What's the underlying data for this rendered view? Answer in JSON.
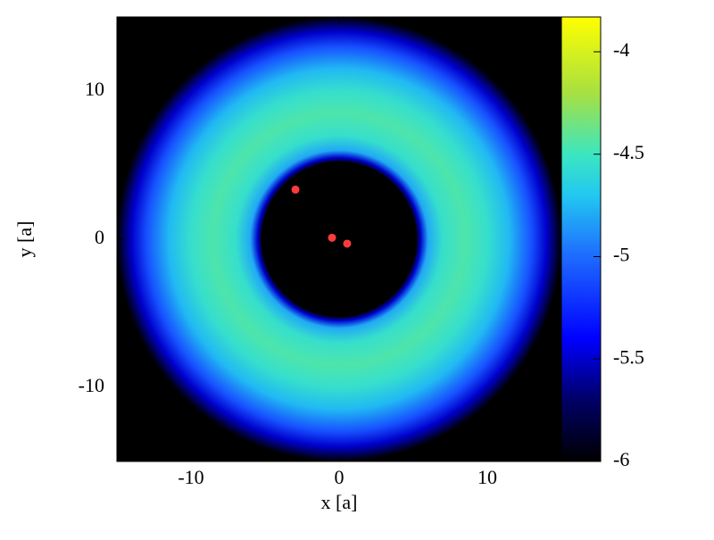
{
  "chart_data": {
    "type": "density-map",
    "xlabel": "x [a]",
    "ylabel": "y [a]",
    "xlim": [
      -15,
      15
    ],
    "ylim": [
      -15,
      15
    ],
    "xticks": [
      -10,
      0,
      10
    ],
    "yticks": [
      -10,
      0,
      10
    ],
    "background": "#000000",
    "profile": {
      "r": [
        0,
        5.2,
        5.5,
        6,
        7,
        8.5,
        10,
        11.5,
        13,
        14,
        15
      ],
      "values": [
        -6,
        -6,
        -5.5,
        -4.8,
        -4.55,
        -4.45,
        -4.55,
        -4.75,
        -5.1,
        -5.5,
        -6
      ]
    },
    "series": [
      {
        "color": "#ff3b3b",
        "x": [
          -2.95,
          -0.48,
          0.54
        ],
        "y": [
          3.35,
          0.1,
          -0.3
        ]
      }
    ],
    "colorbar": {
      "clim": [
        -6,
        -3.83
      ],
      "ticks": [
        -6,
        -5.5,
        -5,
        -4.5,
        -4
      ],
      "colormap": {
        "values": [
          -6,
          -5.7,
          -5.4,
          -5.0,
          -4.7,
          -4.5,
          -4.2,
          -3.83
        ],
        "colors": [
          "#000000",
          "#000066",
          "#0000ff",
          "#1e6bff",
          "#22c8f0",
          "#3ce6c0",
          "#a8e040",
          "#ffff00"
        ]
      }
    }
  }
}
